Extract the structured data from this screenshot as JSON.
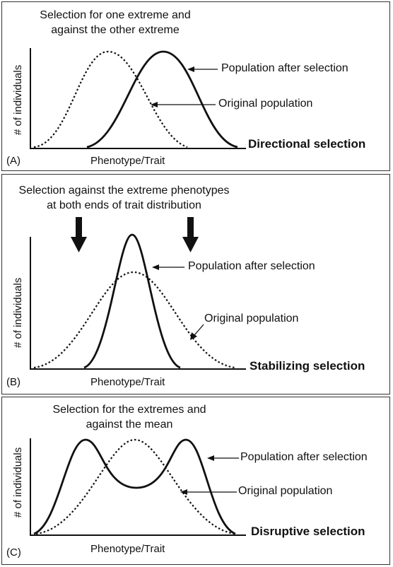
{
  "panels": {
    "a": {
      "description_line1": "Selection for one extreme and",
      "description_line2": "against the other extreme",
      "after_label": "Population after selection",
      "original_label": "Original population",
      "title": "Directional selection",
      "tag": "(A)",
      "x_label": "Phenotype/Trait",
      "y_label": "# of individuals"
    },
    "b": {
      "description_line1": "Selection against the extreme phenotypes",
      "description_line2": "at both ends of trait distribution",
      "after_label": "Population after selection",
      "original_label": "Original population",
      "title": "Stabilizing selection",
      "tag": "(B)",
      "x_label": "Phenotype/Trait",
      "y_label": "# of individuals"
    },
    "c": {
      "description_line1": "Selection for the extremes and",
      "description_line2": "against the mean",
      "after_label": "Population after selection",
      "original_label": "Original population",
      "title": "Disruptive selection",
      "tag": "(C)",
      "x_label": "Phenotype/Trait",
      "y_label": "# of individuals"
    }
  }
}
